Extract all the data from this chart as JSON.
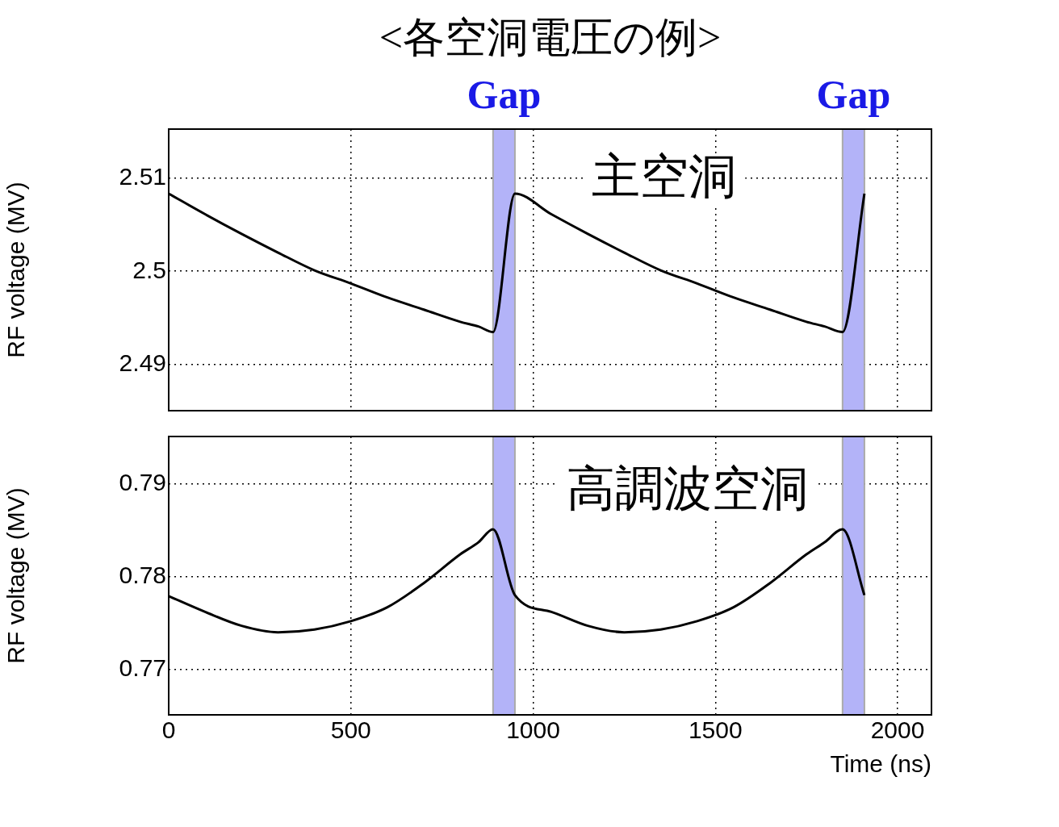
{
  "chart_data": [
    {
      "type": "line",
      "title": "<各空洞電圧の例>",
      "ylabel": "RF voltage (MV)",
      "annotations": [
        "主空洞"
      ],
      "x": [
        0,
        100,
        200,
        300,
        400,
        500,
        600,
        700,
        800,
        850,
        890,
        950,
        1050,
        1150,
        1250,
        1350,
        1450,
        1550,
        1650,
        1750,
        1800,
        1849,
        1909
      ],
      "series": [
        {
          "color": "#000000",
          "values": [
            2.5083,
            2.5061,
            2.504,
            2.502,
            2.5001,
            2.4987,
            2.4972,
            2.4959,
            2.4946,
            2.4941,
            2.4935,
            2.5083,
            2.5061,
            2.504,
            2.502,
            2.5001,
            2.4987,
            2.4972,
            2.4959,
            2.4946,
            2.4941,
            2.4935,
            2.5083
          ]
        }
      ],
      "xlim": [
        0,
        2093
      ],
      "xticks": [
        0,
        500,
        1000,
        1500,
        2000
      ],
      "ylim": [
        2.4851,
        2.5152
      ],
      "yticks": [
        2.49,
        2.5,
        2.51
      ],
      "bands": [
        {
          "axis": "x",
          "from": 890,
          "to": 950,
          "label": "Gap",
          "color": "#b3b3f8"
        },
        {
          "axis": "x",
          "from": 1849,
          "to": 1909,
          "label": "Gap",
          "color": "#b3b3f8"
        }
      ],
      "grid": true,
      "legend": false,
      "marker": "none",
      "line_style": "solid",
      "tick_labels": "y"
    },
    {
      "type": "line",
      "xlabel": "Time (ns)",
      "ylabel": "RF voltage (MV)",
      "annotations": [
        "高調波空洞"
      ],
      "x": [
        0,
        100,
        200,
        300,
        400,
        500,
        600,
        700,
        800,
        850,
        890,
        950,
        1050,
        1150,
        1250,
        1350,
        1450,
        1550,
        1650,
        1750,
        1800,
        1849,
        1909
      ],
      "series": [
        {
          "color": "#000000",
          "values": [
            0.7779,
            0.7762,
            0.7747,
            0.774,
            0.7743,
            0.7752,
            0.7767,
            0.7793,
            0.7824,
            0.7837,
            0.7851,
            0.778,
            0.7762,
            0.7747,
            0.774,
            0.7743,
            0.7752,
            0.7767,
            0.7793,
            0.7824,
            0.7837,
            0.7851,
            0.778
          ]
        }
      ],
      "xlim": [
        0,
        2093
      ],
      "xticks": [
        0,
        500,
        1000,
        1500,
        2000
      ],
      "ylim": [
        0.7651,
        0.7951
      ],
      "yticks": [
        0.77,
        0.78,
        0.79
      ],
      "bands": [
        {
          "axis": "x",
          "from": 890,
          "to": 950,
          "color": "#b3b3f8"
        },
        {
          "axis": "x",
          "from": 1849,
          "to": 1909,
          "color": "#b3b3f8"
        }
      ],
      "grid": true,
      "legend": false,
      "marker": "none",
      "line_style": "solid"
    }
  ]
}
